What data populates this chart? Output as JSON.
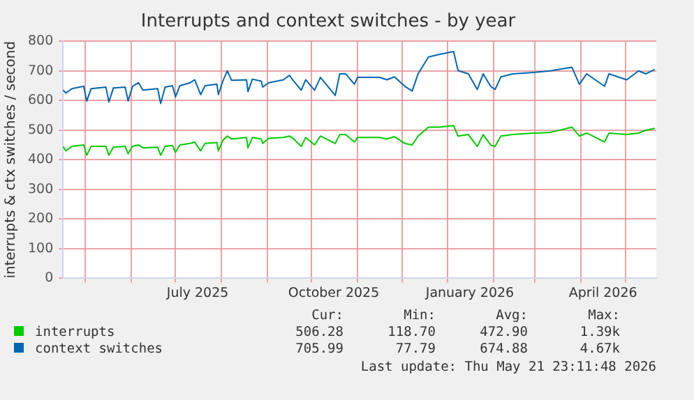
{
  "chart_data": {
    "type": "line",
    "title": "Interrupts and context switches - by year",
    "ylabel": "interrupts & ctx switches / second",
    "x": [
      "2025-04-16",
      "2025-04-18",
      "2025-04-22",
      "2025-04-30",
      "2025-05-02",
      "2025-05-05",
      "2025-05-15",
      "2025-05-17",
      "2025-05-20",
      "2025-05-28",
      "2025-05-30",
      "2025-06-02",
      "2025-06-06",
      "2025-06-09",
      "2025-06-19",
      "2025-06-21",
      "2025-06-24",
      "2025-06-29",
      "2025-07-01",
      "2025-07-04",
      "2025-07-11",
      "2025-07-14",
      "2025-07-18",
      "2025-07-21",
      "2025-07-29",
      "2025-07-30",
      "2025-08-02",
      "2025-08-05",
      "2025-08-08",
      "2025-08-18",
      "2025-08-19",
      "2025-08-22",
      "2025-08-28",
      "2025-08-29",
      "2025-09-02",
      "2025-09-12",
      "2025-09-16",
      "2025-09-19",
      "2025-09-24",
      "2025-09-27",
      "2025-10-03",
      "2025-10-07",
      "2025-10-17",
      "2025-10-20",
      "2025-10-24",
      "2025-10-30",
      "2025-11-01",
      "2025-11-16",
      "2025-11-21",
      "2025-11-26",
      "2025-12-03",
      "2025-12-08",
      "2025-12-12",
      "2025-12-19",
      "2025-12-26",
      "2026-01-05",
      "2026-01-08",
      "2026-01-15",
      "2026-01-21",
      "2026-01-25",
      "2026-01-30",
      "2026-02-02",
      "2026-02-06",
      "2026-02-14",
      "2026-03-01",
      "2026-03-11",
      "2026-03-26",
      "2026-03-31",
      "2026-04-05",
      "2026-04-17",
      "2026-04-20",
      "2026-05-02",
      "2026-05-10",
      "2026-05-15",
      "2026-05-21"
    ],
    "series": [
      {
        "name": "interrupts",
        "color": "#00cc00",
        "values": [
          445,
          430,
          445,
          450,
          415,
          445,
          445,
          415,
          442,
          445,
          420,
          445,
          450,
          440,
          442,
          415,
          445,
          448,
          425,
          450,
          455,
          460,
          430,
          455,
          458,
          430,
          465,
          480,
          470,
          475,
          440,
          475,
          470,
          455,
          472,
          475,
          480,
          470,
          445,
          475,
          450,
          480,
          455,
          485,
          485,
          460,
          475,
          475,
          470,
          478,
          455,
          450,
          480,
          510,
          510,
          515,
          480,
          485,
          445,
          485,
          450,
          445,
          480,
          485,
          490,
          492,
          510,
          480,
          490,
          460,
          490,
          485,
          490,
          500,
          506
        ]
      },
      {
        "name": "context switches",
        "color": "#0066b3",
        "values": [
          635,
          625,
          640,
          648,
          598,
          640,
          645,
          595,
          642,
          645,
          598,
          648,
          660,
          635,
          640,
          590,
          645,
          650,
          612,
          650,
          660,
          670,
          620,
          650,
          655,
          620,
          665,
          700,
          668,
          670,
          630,
          672,
          665,
          645,
          660,
          670,
          685,
          665,
          635,
          670,
          635,
          678,
          617,
          690,
          690,
          655,
          678,
          678,
          670,
          680,
          648,
          632,
          690,
          747,
          755,
          765,
          701,
          690,
          637,
          690,
          648,
          637,
          680,
          690,
          695,
          700,
          712,
          655,
          690,
          648,
          690,
          670,
          700,
          690,
          705
        ]
      }
    ],
    "xlim": [
      "2025-04-16",
      "2026-05-22"
    ],
    "xticks": [
      {
        "value": "2025-05-01",
        "label": null
      },
      {
        "value": "2025-06-01",
        "label": null
      },
      {
        "value": "2025-07-01",
        "label": null
      },
      {
        "value": "2025-07-16",
        "label": "July 2025"
      },
      {
        "value": "2025-08-01",
        "label": null
      },
      {
        "value": "2025-09-01",
        "label": null
      },
      {
        "value": "2025-10-01",
        "label": null
      },
      {
        "value": "2025-10-16",
        "label": "October 2025"
      },
      {
        "value": "2025-11-01",
        "label": null
      },
      {
        "value": "2025-12-01",
        "label": null
      },
      {
        "value": "2026-01-01",
        "label": null
      },
      {
        "value": "2026-01-16",
        "label": "January 2026"
      },
      {
        "value": "2026-02-01",
        "label": null
      },
      {
        "value": "2026-03-01",
        "label": null
      },
      {
        "value": "2026-04-01",
        "label": null
      },
      {
        "value": "2026-04-16",
        "label": "April 2026"
      },
      {
        "value": "2026-05-01",
        "label": null
      }
    ],
    "ylim": [
      0,
      800
    ],
    "yticks": [
      0,
      100,
      200,
      300,
      400,
      500,
      600,
      700,
      800
    ],
    "grid": true,
    "legend": "bottom",
    "marker": "none",
    "line_style": "solid",
    "annotations": [
      "Cur:",
      "Min:",
      "Avg:",
      "Max:",
      "506.28",
      "118.70",
      "472.90",
      "1.39k",
      "705.99",
      "77.79",
      "674.88",
      "4.67k",
      "Last update: Thu May 21 23:11:48 2026"
    ]
  }
}
